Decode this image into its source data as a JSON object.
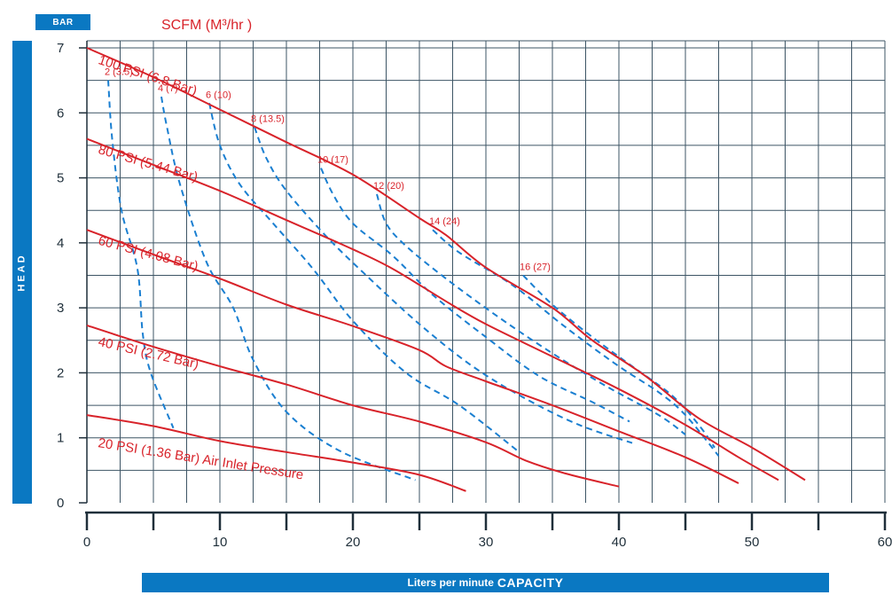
{
  "labels": {
    "bar_unit": "BAR",
    "head": "HEAD",
    "capacity_prefix": "Liters per minute",
    "capacity_main": "CAPACITY",
    "scfm_title": "SCFM (M³/hr )"
  },
  "colors": {
    "pressure": "#d8232a",
    "air": "#1a7fd1",
    "grid": "#3d5565",
    "tag": "#0a78c2"
  },
  "chart_data": {
    "type": "line",
    "xlim": [
      0,
      60
    ],
    "ylim": [
      0,
      7
    ],
    "x_ticks": [
      "0",
      "10",
      "20",
      "30",
      "40",
      "50",
      "60"
    ],
    "y_ticks": [
      "0",
      "1",
      "2",
      "3",
      "4",
      "5",
      "6",
      "7"
    ],
    "pressure_curves": [
      {
        "label": "20 PSI (1.36 Bar) Air Inlet Pressure",
        "points": [
          [
            0,
            1.35
          ],
          [
            5,
            1.18
          ],
          [
            10,
            0.95
          ],
          [
            15,
            0.78
          ],
          [
            20,
            0.62
          ],
          [
            25,
            0.43
          ],
          [
            28.5,
            0.18
          ]
        ]
      },
      {
        "label": "40 PSI (2.72 Bar)",
        "points": [
          [
            0,
            2.73
          ],
          [
            5,
            2.4
          ],
          [
            10,
            2.1
          ],
          [
            15,
            1.82
          ],
          [
            20,
            1.5
          ],
          [
            25,
            1.25
          ],
          [
            30,
            0.93
          ],
          [
            33,
            0.65
          ],
          [
            36,
            0.45
          ],
          [
            40,
            0.25
          ]
        ]
      },
      {
        "label": "60 PSI (4.08 Bar)",
        "points": [
          [
            0,
            4.2
          ],
          [
            5,
            3.82
          ],
          [
            10,
            3.45
          ],
          [
            15,
            3.05
          ],
          [
            20,
            2.72
          ],
          [
            25,
            2.35
          ],
          [
            27,
            2.1
          ],
          [
            30,
            1.87
          ],
          [
            35,
            1.5
          ],
          [
            40,
            1.1
          ],
          [
            45,
            0.7
          ],
          [
            49,
            0.3
          ]
        ]
      },
      {
        "label": "80 PSI (5.44 Bar)",
        "points": [
          [
            0,
            5.6
          ],
          [
            5,
            5.2
          ],
          [
            10,
            4.8
          ],
          [
            15,
            4.35
          ],
          [
            20,
            3.9
          ],
          [
            23,
            3.6
          ],
          [
            27,
            3.1
          ],
          [
            30,
            2.75
          ],
          [
            35,
            2.25
          ],
          [
            40,
            1.75
          ],
          [
            45,
            1.2
          ],
          [
            49,
            0.7
          ],
          [
            52,
            0.35
          ]
        ]
      },
      {
        "label": "100 PSI (6.8 Bar)",
        "points": [
          [
            0,
            7.0
          ],
          [
            5,
            6.55
          ],
          [
            10,
            6.05
          ],
          [
            15,
            5.55
          ],
          [
            20,
            5.05
          ],
          [
            25,
            4.38
          ],
          [
            27,
            4.12
          ],
          [
            30,
            3.62
          ],
          [
            35,
            3.0
          ],
          [
            38,
            2.5
          ],
          [
            42,
            1.95
          ],
          [
            46,
            1.3
          ],
          [
            50,
            0.85
          ],
          [
            54,
            0.35
          ]
        ]
      }
    ],
    "air_curves": [
      {
        "label": "2 (3.5)",
        "points": [
          [
            1.6,
            6.5
          ],
          [
            1.9,
            5.6
          ],
          [
            2.6,
            4.5
          ],
          [
            3.8,
            3.6
          ],
          [
            4.2,
            2.6
          ],
          [
            4.8,
            2.0
          ],
          [
            6.5,
            1.15
          ]
        ]
      },
      {
        "label": "4 (7)",
        "points": [
          [
            5.6,
            6.25
          ],
          [
            6.0,
            5.8
          ],
          [
            7.0,
            4.9
          ],
          [
            9.0,
            3.7
          ],
          [
            11.0,
            3.0
          ],
          [
            12.5,
            2.2
          ],
          [
            15.0,
            1.4
          ],
          [
            19.0,
            0.8
          ],
          [
            24.7,
            0.35
          ]
        ]
      },
      {
        "label": "6 (10)",
        "points": [
          [
            9.2,
            6.15
          ],
          [
            10.0,
            5.5
          ],
          [
            11.5,
            4.9
          ],
          [
            14.0,
            4.3
          ],
          [
            17.0,
            3.6
          ],
          [
            20.0,
            2.8
          ],
          [
            24.0,
            2.0
          ],
          [
            28.0,
            1.5
          ],
          [
            32.5,
            0.78
          ]
        ]
      },
      {
        "label": "8 (13.5)",
        "points": [
          [
            12.6,
            5.78
          ],
          [
            13.5,
            5.3
          ],
          [
            15.0,
            4.8
          ],
          [
            18.0,
            4.1
          ],
          [
            21.0,
            3.5
          ],
          [
            25.0,
            2.75
          ],
          [
            29.0,
            2.1
          ],
          [
            33.0,
            1.6
          ],
          [
            37.0,
            1.2
          ],
          [
            41.0,
            0.92
          ]
        ]
      },
      {
        "label": "10 (17)",
        "points": [
          [
            17.6,
            5.15
          ],
          [
            18.5,
            4.75
          ],
          [
            20.0,
            4.3
          ],
          [
            23.0,
            3.8
          ],
          [
            26.0,
            3.2
          ],
          [
            30.0,
            2.55
          ],
          [
            34.0,
            1.95
          ],
          [
            38.0,
            1.55
          ],
          [
            40.8,
            1.25
          ]
        ]
      },
      {
        "label": "12 (20)",
        "points": [
          [
            21.8,
            4.75
          ],
          [
            22.5,
            4.3
          ],
          [
            24.0,
            3.95
          ],
          [
            27.0,
            3.45
          ],
          [
            31.0,
            2.85
          ],
          [
            35.0,
            2.3
          ],
          [
            39.0,
            1.8
          ],
          [
            43.0,
            1.35
          ],
          [
            45.0,
            1.05
          ]
        ]
      },
      {
        "label": "14 (24)",
        "points": [
          [
            26.0,
            4.2
          ],
          [
            28.0,
            3.85
          ],
          [
            32.0,
            3.35
          ],
          [
            36.0,
            2.7
          ],
          [
            40.0,
            2.1
          ],
          [
            43.0,
            1.7
          ],
          [
            45.0,
            1.35
          ],
          [
            47.5,
            0.72
          ]
        ]
      },
      {
        "label": "16 (27)",
        "points": [
          [
            32.8,
            3.5
          ],
          [
            35.0,
            3.05
          ],
          [
            38.0,
            2.55
          ],
          [
            41.0,
            2.1
          ],
          [
            44.0,
            1.65
          ],
          [
            46.0,
            1.2
          ],
          [
            47.2,
            0.85
          ]
        ]
      }
    ]
  }
}
